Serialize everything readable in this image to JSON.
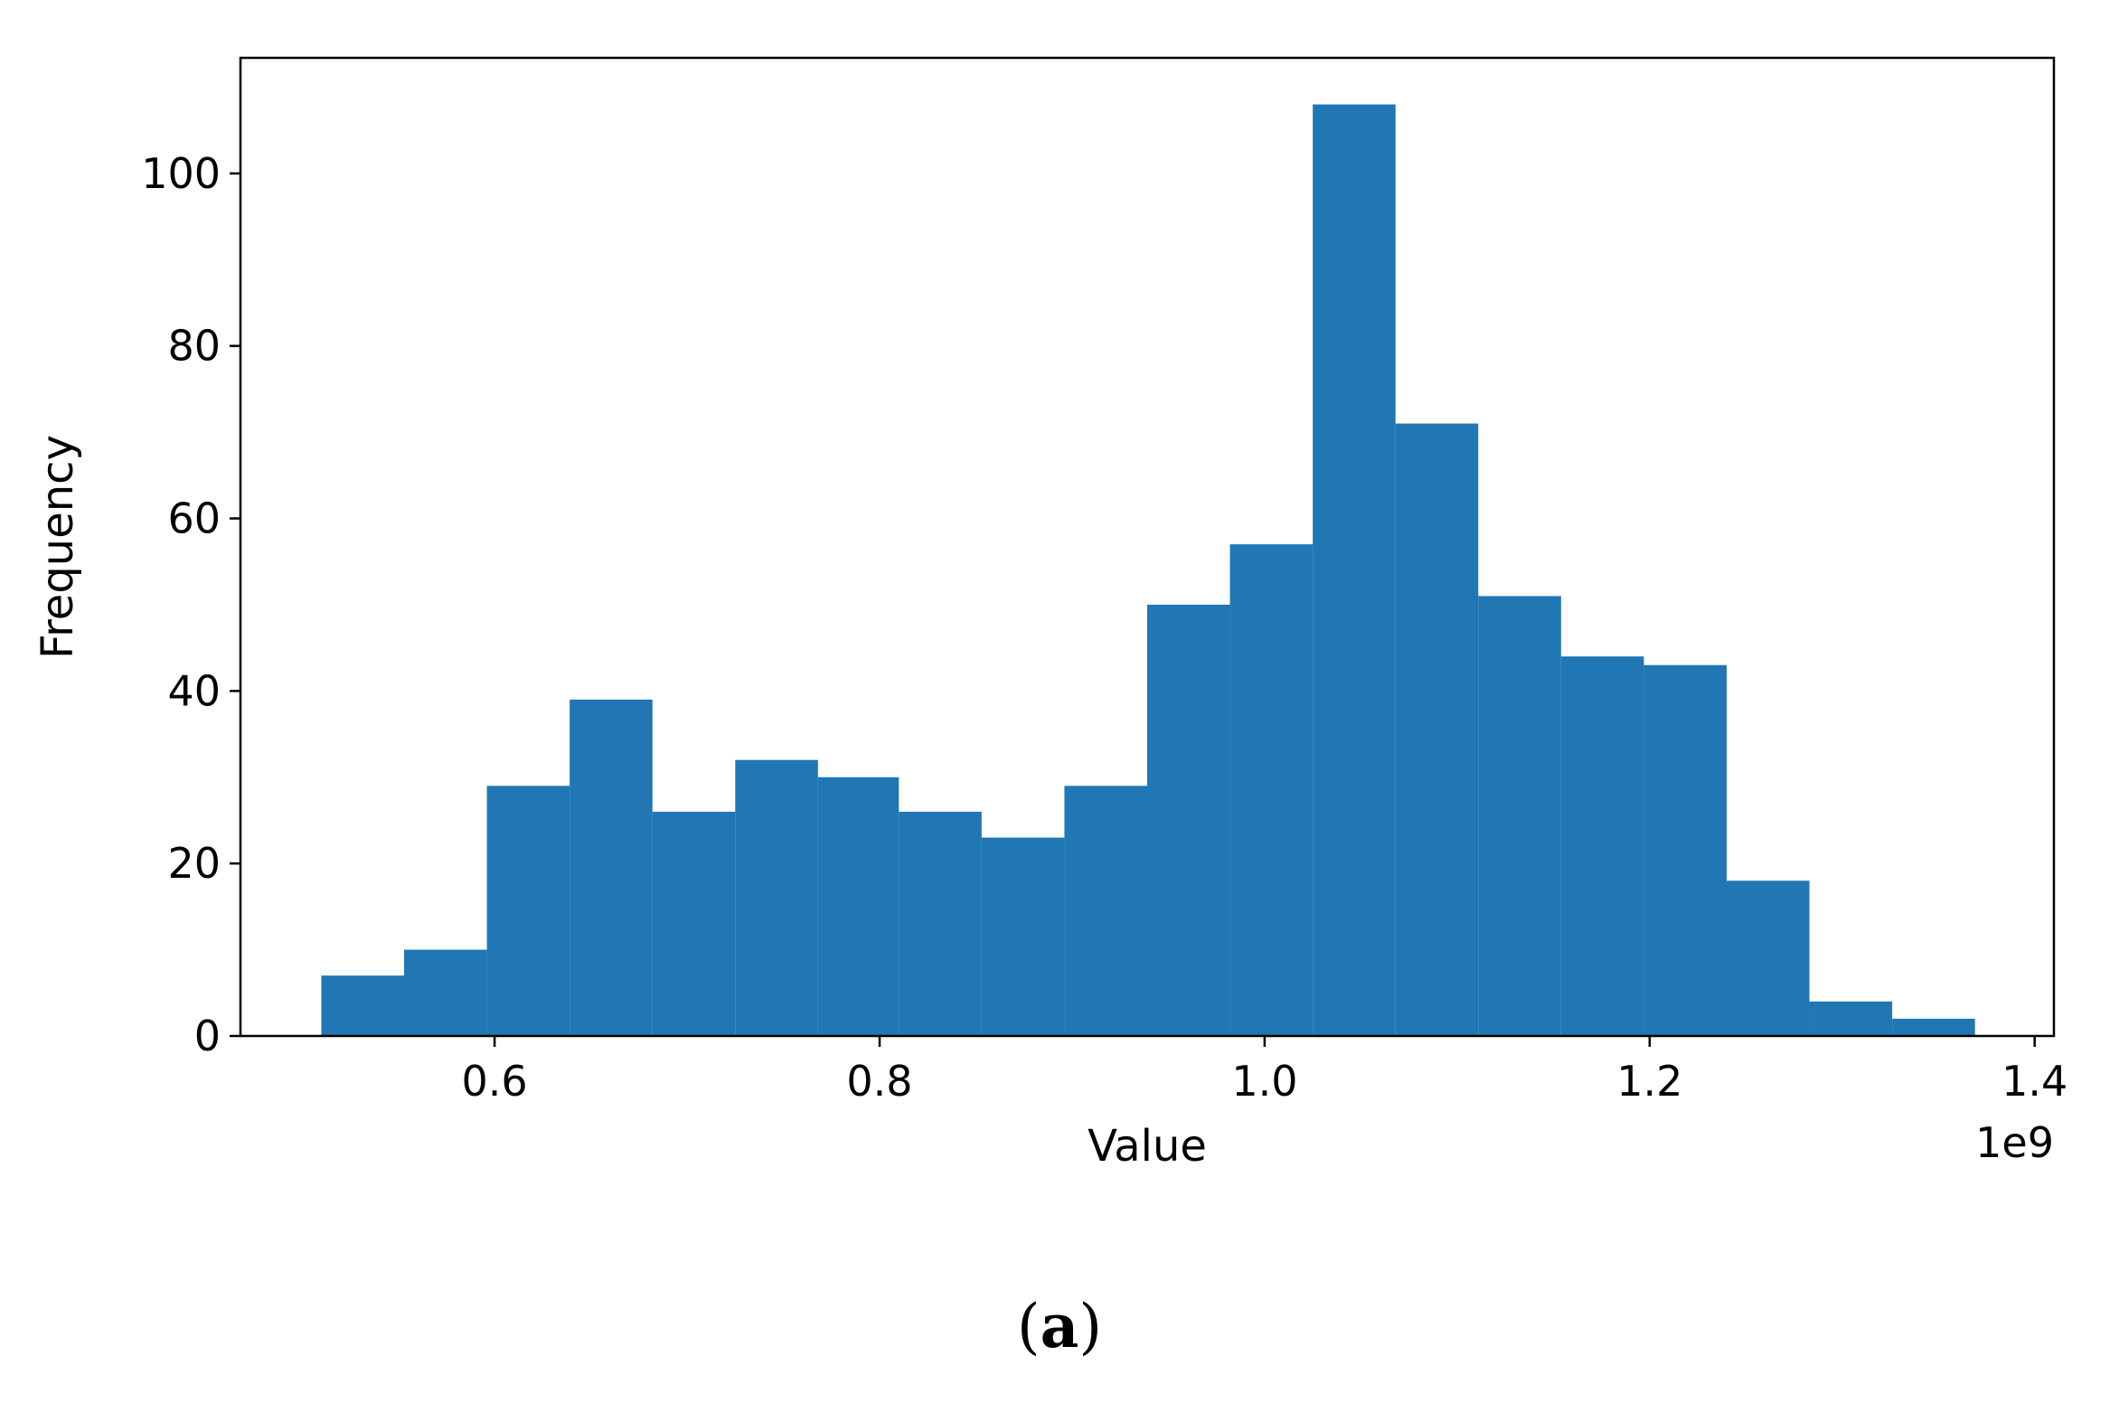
{
  "chart_data": {
    "type": "bar",
    "subtype": "histogram",
    "bins": [
      {
        "x0": 0.51,
        "x1": 0.553,
        "count": 7
      },
      {
        "x0": 0.553,
        "x1": 0.596,
        "count": 10
      },
      {
        "x0": 0.596,
        "x1": 0.639,
        "count": 29
      },
      {
        "x0": 0.639,
        "x1": 0.682,
        "count": 39
      },
      {
        "x0": 0.682,
        "x1": 0.725,
        "count": 26
      },
      {
        "x0": 0.725,
        "x1": 0.768,
        "count": 32
      },
      {
        "x0": 0.768,
        "x1": 0.81,
        "count": 30
      },
      {
        "x0": 0.81,
        "x1": 0.853,
        "count": 26
      },
      {
        "x0": 0.853,
        "x1": 0.896,
        "count": 23
      },
      {
        "x0": 0.896,
        "x1": 0.939,
        "count": 29
      },
      {
        "x0": 0.939,
        "x1": 0.982,
        "count": 50
      },
      {
        "x0": 0.982,
        "x1": 1.025,
        "count": 57
      },
      {
        "x0": 1.025,
        "x1": 1.068,
        "count": 108
      },
      {
        "x0": 1.068,
        "x1": 1.111,
        "count": 71
      },
      {
        "x0": 1.111,
        "x1": 1.154,
        "count": 51
      },
      {
        "x0": 1.154,
        "x1": 1.197,
        "count": 44
      },
      {
        "x0": 1.197,
        "x1": 1.24,
        "count": 43
      },
      {
        "x0": 1.24,
        "x1": 1.283,
        "count": 18
      },
      {
        "x0": 1.283,
        "x1": 1.326,
        "count": 4
      },
      {
        "x0": 1.326,
        "x1": 1.369,
        "count": 2
      }
    ],
    "xlabel": "Value",
    "ylabel": "Frequency",
    "x_offset_label": "1e9",
    "xlim": [
      0.468,
      1.41
    ],
    "ylim": [
      0,
      113.4
    ],
    "xticks": [
      0.6,
      0.8,
      1.0,
      1.2,
      1.4
    ],
    "xtick_labels": [
      "0.6",
      "0.8",
      "1.0",
      "1.2",
      "1.4"
    ],
    "yticks": [
      0,
      20,
      40,
      60,
      80,
      100
    ],
    "ytick_labels": [
      "0",
      "20",
      "40",
      "60",
      "80",
      "100"
    ],
    "bar_color": "#2077b4",
    "grid": false,
    "legend": "none"
  },
  "caption": {
    "open": "(",
    "letter": "a",
    "close": ")"
  }
}
